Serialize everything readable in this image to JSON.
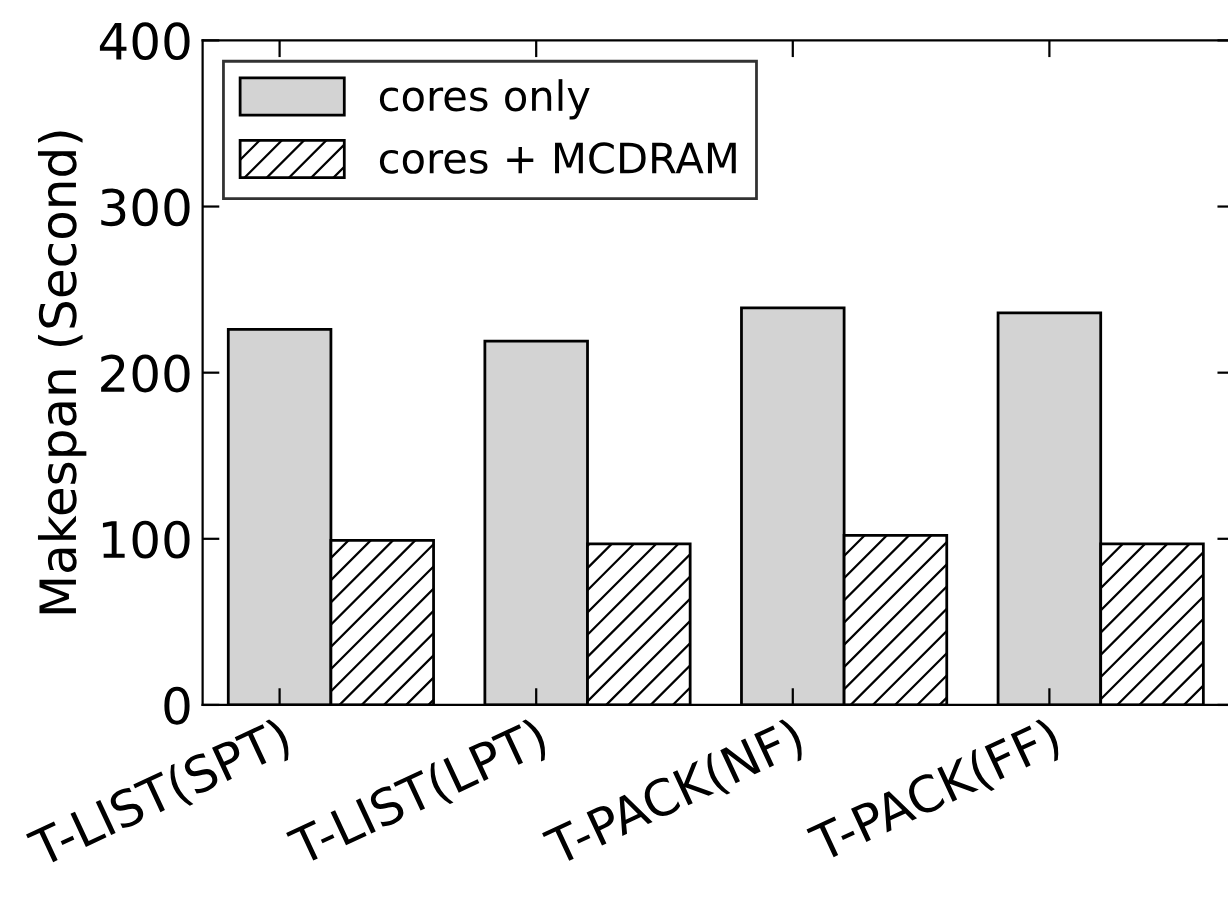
{
  "chart_data": {
    "type": "bar",
    "ylabel": "Makespan (Second)",
    "categories": [
      "T-LIST(SPT)",
      "T-LIST(LPT)",
      "T-PACK(NF)",
      "T-PACK(FF)"
    ],
    "series": [
      {
        "name": "cores only",
        "color": "#d3d3d3",
        "values": [
          226,
          219,
          239,
          236
        ]
      },
      {
        "name": "cores + MCDRAM",
        "color": "#000000",
        "values": [
          99,
          97,
          102,
          97
        ]
      }
    ],
    "ylim": [
      0,
      400
    ],
    "yticks": [
      0,
      100,
      200,
      300,
      400
    ],
    "grid": false,
    "legend": "top left"
  }
}
